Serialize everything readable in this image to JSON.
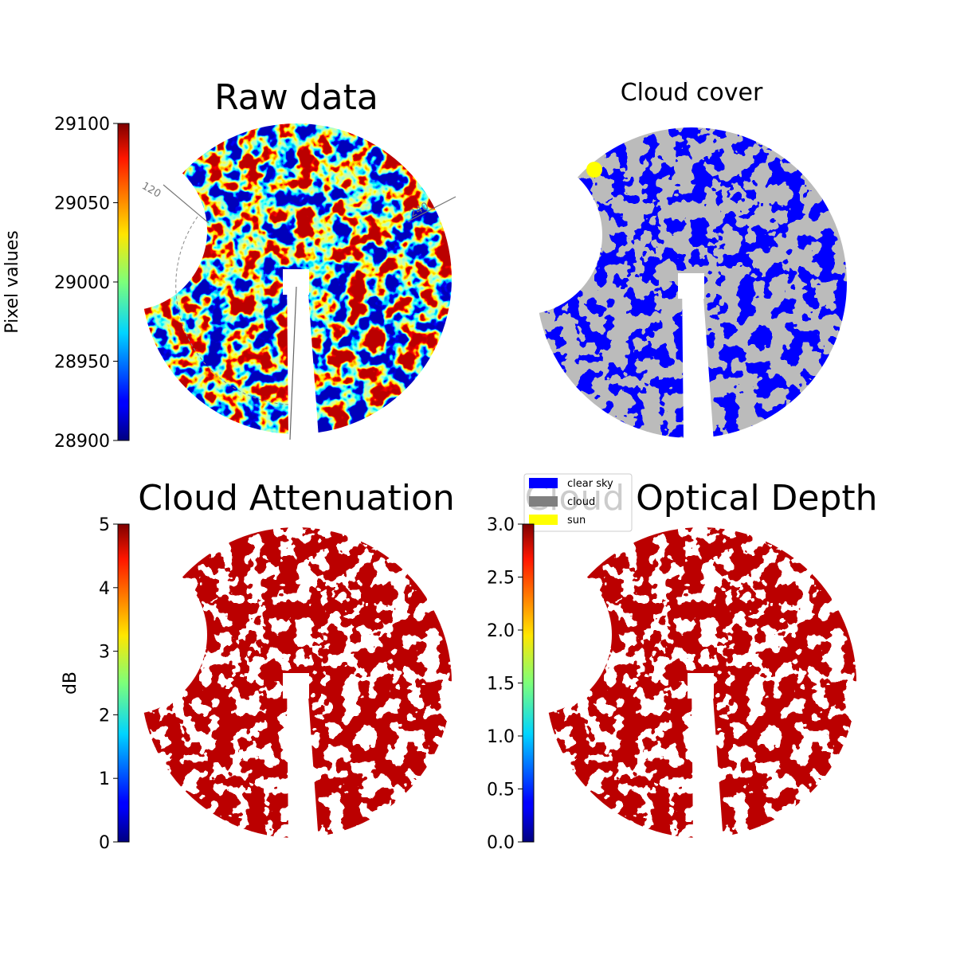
{
  "chart_data": [
    {
      "type": "image",
      "title": "Raw data",
      "colormap": "jet",
      "colorbar": {
        "label": "Pixel values",
        "clim": [
          28900,
          29100
        ],
        "ticks": [
          28900,
          28950,
          29000,
          29050,
          29100
        ]
      },
      "annotations": [
        "120",
        "240"
      ]
    },
    {
      "type": "image",
      "title": "Cloud cover",
      "legend": [
        {
          "name": "clear sky",
          "color": "#0000ff"
        },
        {
          "name": "cloud",
          "color": "#808080"
        },
        {
          "name": "sun",
          "color": "#ffff00"
        }
      ]
    },
    {
      "type": "image",
      "title": "Cloud Attenuation",
      "colormap": "jet",
      "colorbar": {
        "label": "dB",
        "clim": [
          0,
          5
        ],
        "ticks": [
          0,
          1,
          2,
          3,
          4,
          5
        ]
      }
    },
    {
      "type": "image",
      "title": "Cloud Optical Depth",
      "colormap": "jet",
      "colorbar": {
        "clim": [
          0,
          3
        ],
        "ticks": [
          {
            "value": 0,
            "label": "0.0"
          },
          0.5,
          {
            "value": 1,
            "label": "1.0"
          },
          1.5,
          {
            "value": 2,
            "label": "2.0"
          },
          2.5,
          {
            "value": 3,
            "label": "3.0"
          }
        ]
      }
    }
  ]
}
